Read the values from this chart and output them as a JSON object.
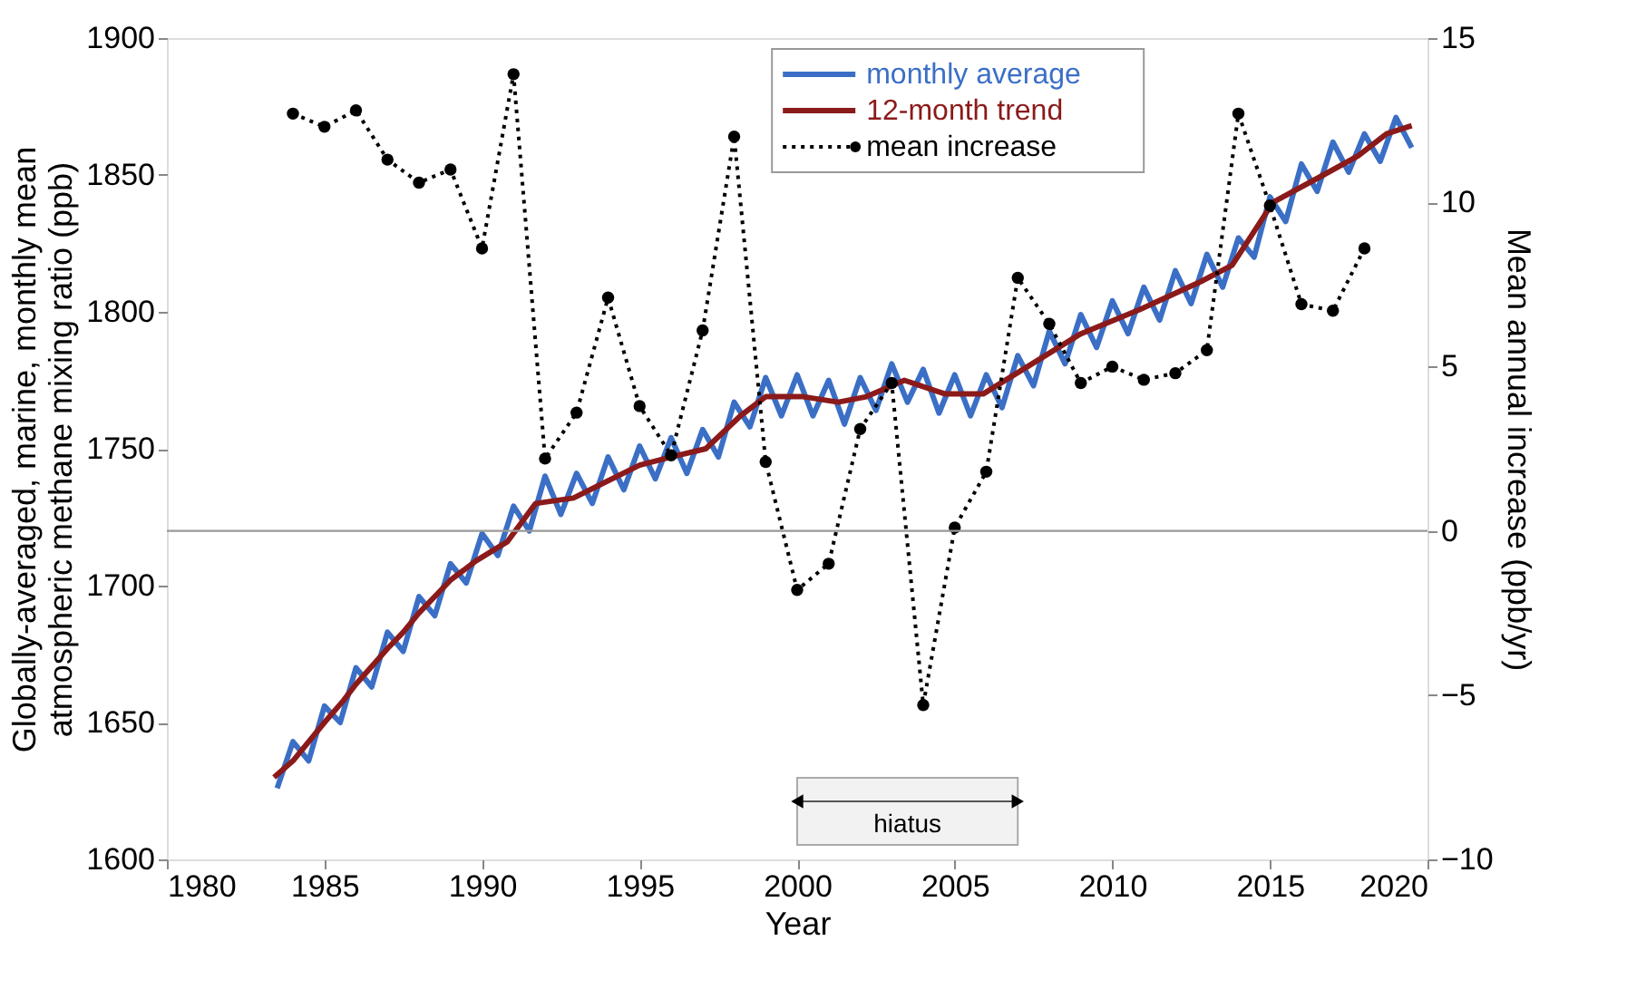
{
  "chart_data": {
    "type": "line",
    "xlabel": "Year",
    "ylabel": "Globally-averaged, marine, monthly mean atmospheric methane mixing ratio (ppb)",
    "y2label": "Mean annual increase (ppb/yr)",
    "xlim": [
      1980,
      2020
    ],
    "xticks": [
      1980,
      1985,
      1990,
      1995,
      2000,
      2005,
      2010,
      2015,
      2020
    ],
    "ylim": [
      1600,
      1900
    ],
    "yticks": [
      1600,
      1650,
      1700,
      1750,
      1800,
      1850,
      1900
    ],
    "y2lim": [
      -10,
      15
    ],
    "y2ticks": [
      -10,
      -5,
      0,
      5,
      10,
      15
    ],
    "grid": false,
    "legend": "top",
    "series": [
      {
        "name": "monthly average",
        "color": "#3b6fc6",
        "marker": "none",
        "line_style": "solid",
        "x": [
          1983.5,
          1984.0,
          1984.5,
          1985.0,
          1985.5,
          1986.0,
          1986.5,
          1987.0,
          1987.5,
          1988.0,
          1988.5,
          1989.0,
          1989.5,
          1990.0,
          1990.5,
          1991.0,
          1991.5,
          1992.0,
          1992.5,
          1993.0,
          1993.5,
          1994.0,
          1994.5,
          1995.0,
          1995.5,
          1996.0,
          1996.5,
          1997.0,
          1997.5,
          1998.0,
          1998.5,
          1999.0,
          1999.5,
          2000.0,
          2000.5,
          2001.0,
          2001.5,
          2002.0,
          2002.5,
          2003.0,
          2003.5,
          2004.0,
          2004.5,
          2005.0,
          2005.5,
          2006.0,
          2006.5,
          2007.0,
          2007.5,
          2008.0,
          2008.5,
          2009.0,
          2009.5,
          2010.0,
          2010.5,
          2011.0,
          2011.5,
          2012.0,
          2012.5,
          2013.0,
          2013.5,
          2014.0,
          2014.5,
          2015.0,
          2015.5,
          2016.0,
          2016.5,
          2017.0,
          2017.5,
          2018.0,
          2018.5,
          2019.0,
          2019.5
        ],
        "values": [
          1626,
          1643,
          1636,
          1656,
          1650,
          1670,
          1663,
          1683,
          1676,
          1696,
          1689,
          1708,
          1701,
          1719,
          1711,
          1729,
          1720,
          1740,
          1726,
          1741,
          1730,
          1747,
          1735,
          1751,
          1739,
          1754,
          1741,
          1757,
          1747,
          1767,
          1758,
          1776,
          1762,
          1777,
          1762,
          1775,
          1759,
          1776,
          1764,
          1781,
          1767,
          1779,
          1763,
          1777,
          1762,
          1777,
          1765,
          1784,
          1773,
          1793,
          1781,
          1799,
          1787,
          1804,
          1792,
          1809,
          1797,
          1815,
          1803,
          1821,
          1809,
          1827,
          1820,
          1842,
          1833,
          1854,
          1844,
          1862,
          1851,
          1865,
          1855,
          1871,
          1860
        ]
      },
      {
        "name": "12-month trend",
        "color": "#8b1a1a",
        "marker": "none",
        "line_style": "solid",
        "x": [
          1983.4,
          1984,
          1985,
          1985.6,
          1986,
          1987,
          1987.5,
          1988,
          1989,
          1989.8,
          1990.8,
          1991.7,
          1992.9,
          1993.6,
          1995,
          1996,
          1997.1,
          1998.2,
          1999,
          2000.2,
          2001.3,
          2002.2,
          2003.4,
          2004.7,
          2005.9,
          2007.45,
          2009,
          2010.9,
          2012.8,
          2013.8,
          2015.1,
          2016.7,
          2017.8,
          2018.7,
          2019.5
        ],
        "values": [
          1630,
          1636,
          1650,
          1658,
          1664,
          1677,
          1683,
          1690,
          1702,
          1709,
          1716,
          1730,
          1732,
          1736,
          1744,
          1747,
          1750,
          1762,
          1769,
          1769,
          1767,
          1769,
          1775,
          1770,
          1770,
          1781,
          1792,
          1801,
          1811,
          1817,
          1840,
          1850,
          1857,
          1865,
          1868
        ]
      },
      {
        "name": "mean increase",
        "color": "#000000",
        "axis": "y2",
        "marker": "circle",
        "line_style": "dotted",
        "x": [
          1984,
          1985,
          1986,
          1987,
          1988,
          1989,
          1990,
          1991,
          1992,
          1993,
          1994,
          1995,
          1996,
          1997,
          1998,
          1999,
          2000,
          2001,
          2002,
          2003,
          2004,
          2005,
          2006,
          2007,
          2008,
          2009,
          2010,
          2011,
          2012,
          2013,
          2014,
          2015,
          2016,
          2017,
          2018
        ],
        "values": [
          12.7,
          12.3,
          12.8,
          11.3,
          10.6,
          11.0,
          8.6,
          13.9,
          2.2,
          3.6,
          7.1,
          3.8,
          2.3,
          6.1,
          12.0,
          2.1,
          -1.8,
          -1.0,
          3.1,
          4.5,
          -5.3,
          0.1,
          1.8,
          7.7,
          6.3,
          4.5,
          5.0,
          4.6,
          4.8,
          5.5,
          12.7,
          9.9,
          6.9,
          6.7,
          8.6
        ]
      }
    ],
    "ref_lines": [
      {
        "axis": "y2",
        "value": 0,
        "color": "#999999"
      }
    ],
    "bands": [
      {
        "axis": "x",
        "from": 2000,
        "to": 2007,
        "label": "hiatus"
      }
    ]
  }
}
